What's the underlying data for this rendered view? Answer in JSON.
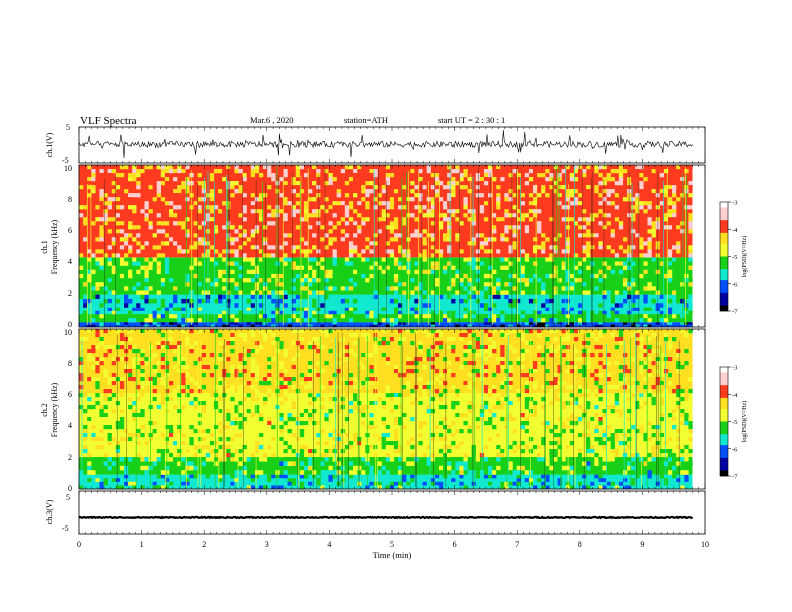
{
  "header": {
    "title": "VLF  Spectra",
    "date": "Mar.6  , 2020",
    "station": "station=ATH",
    "start": "start  UT  =    2  : 30 : 1"
  },
  "chart_data": [
    {
      "type": "line",
      "name": "ch1-waveform",
      "ylabel": "ch.1(V)",
      "ylim": [
        -5,
        5
      ],
      "yticks": [
        "5",
        "-5"
      ],
      "color": "#000000",
      "x_range_min": [
        0,
        9.8
      ],
      "y_baseline": 0.2
    },
    {
      "type": "heatmap",
      "name": "ch1-spectrogram",
      "ylabel_line1": "ch.1",
      "ylabel_line2": "Frequency  (kHz)",
      "ylim": [
        0,
        10
      ],
      "yticks": [
        "0",
        "2",
        "4",
        "6",
        "8",
        "10"
      ],
      "x_range_min": [
        0,
        9.8
      ],
      "bands": [
        {
          "from_khz": 0.0,
          "to_khz": 0.3,
          "log_psd": -6.3
        },
        {
          "from_khz": 0.3,
          "to_khz": 0.8,
          "log_psd": -5.3
        },
        {
          "from_khz": 0.8,
          "to_khz": 1.2,
          "log_psd": -5.6
        },
        {
          "from_khz": 1.2,
          "to_khz": 2.0,
          "log_psd": -5.8
        },
        {
          "from_khz": 2.0,
          "to_khz": 4.3,
          "log_psd": -5.1
        },
        {
          "from_khz": 4.3,
          "to_khz": 10.0,
          "log_psd": -4.0
        }
      ],
      "colorbar": {
        "label": "log(PSD)(V²/Hz)",
        "ticks": [
          "-3",
          "-4",
          "-5",
          "-6",
          "-7"
        ],
        "range": [
          -7,
          -3
        ]
      }
    },
    {
      "type": "heatmap",
      "name": "ch2-spectrogram",
      "ylabel_line1": "ch.2",
      "ylabel_line2": "Frequency  (kHz)",
      "ylim": [
        0,
        10
      ],
      "yticks": [
        "0",
        "2",
        "4",
        "6",
        "8",
        "10"
      ],
      "x_range_min": [
        0,
        9.8
      ],
      "bands": [
        {
          "from_khz": 0.0,
          "to_khz": 0.9,
          "log_psd": -5.6
        },
        {
          "from_khz": 0.9,
          "to_khz": 2.0,
          "log_psd": -5.2
        },
        {
          "from_khz": 2.0,
          "to_khz": 6.0,
          "log_psd": -4.8
        },
        {
          "from_khz": 6.0,
          "to_khz": 10.0,
          "log_psd": -4.5
        }
      ],
      "colorbar": {
        "label": "log(PSD)(V²/Hz)",
        "ticks": [
          "-3",
          "-4",
          "-5",
          "-6",
          "-7"
        ],
        "range": [
          -7,
          -3
        ]
      }
    },
    {
      "type": "line",
      "name": "ch3-waveform",
      "ylabel": "ch.3(V)",
      "ylim": [
        -5,
        5
      ],
      "yticks": [
        "5",
        "-5"
      ],
      "color": "#000000",
      "x_range_min": [
        0,
        9.8
      ],
      "y_baseline": -1.2
    }
  ],
  "xaxis": {
    "label": "Time  (min)",
    "ticks": [
      "0",
      "1",
      "2",
      "3",
      "4",
      "5",
      "6",
      "7",
      "8",
      "9",
      "10"
    ],
    "xlim": [
      0,
      10
    ]
  },
  "colors": {
    "colormap": [
      "#ffffff",
      "#ffd0d0",
      "#ff3b1f",
      "#ffe020",
      "#f2ff30",
      "#18d018",
      "#10e8d0",
      "#0050ff",
      "#0000a0",
      "#000000"
    ]
  }
}
